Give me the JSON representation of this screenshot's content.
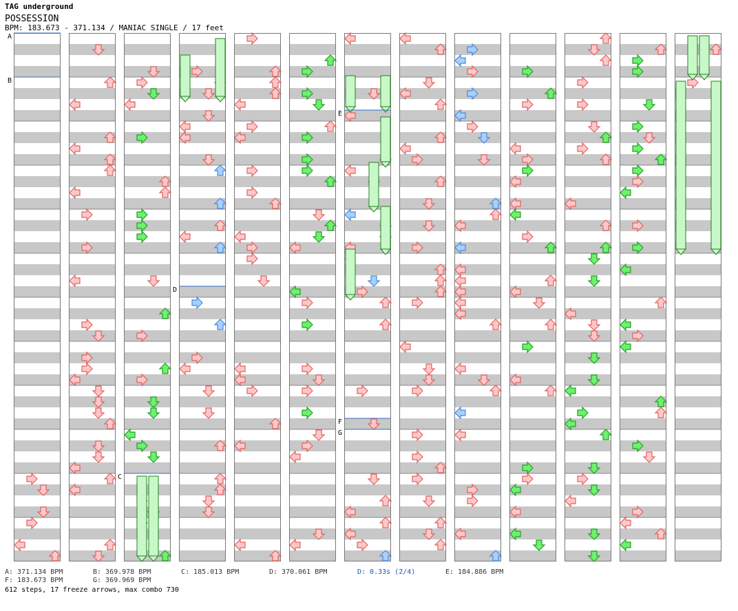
{
  "header": {
    "artist": "TAG underground",
    "title": "POSSESSION",
    "meta": "BPM: 183.673 - 371.134 / MANIAC SINGLE / 17 feet"
  },
  "legend": {
    "a": "A: 371.134 BPM",
    "b": "B: 369.978 BPM",
    "c": "C: 185.013 BPM",
    "d": "D: 370.061 BPM",
    "d_stop": "D: 0.33s (2/4)",
    "e": "E: 184.886 BPM",
    "f": "F: 183.673 BPM",
    "g": "G: 369.969 BPM"
  },
  "stats": "612 steps, 17 freeze arrows, max combo 730",
  "markers": [
    "A",
    "B",
    "C",
    "D",
    "E",
    "F",
    "G"
  ],
  "colors": {
    "red_fill": "#ffc8c8",
    "red_stroke": "#e06060",
    "blue_fill": "#a8d0ff",
    "blue_stroke": "#4a8ad8",
    "green_fill": "#70f070",
    "green_stroke": "#20a020",
    "pink_fill": "#ffc0ff",
    "pink_stroke": "#c060c0",
    "freeze_fill": "#c8f8c8",
    "freeze_stroke": "#208020",
    "stripe_gray": "#c8c8c8",
    "marker_line": "#3070c0"
  }
}
